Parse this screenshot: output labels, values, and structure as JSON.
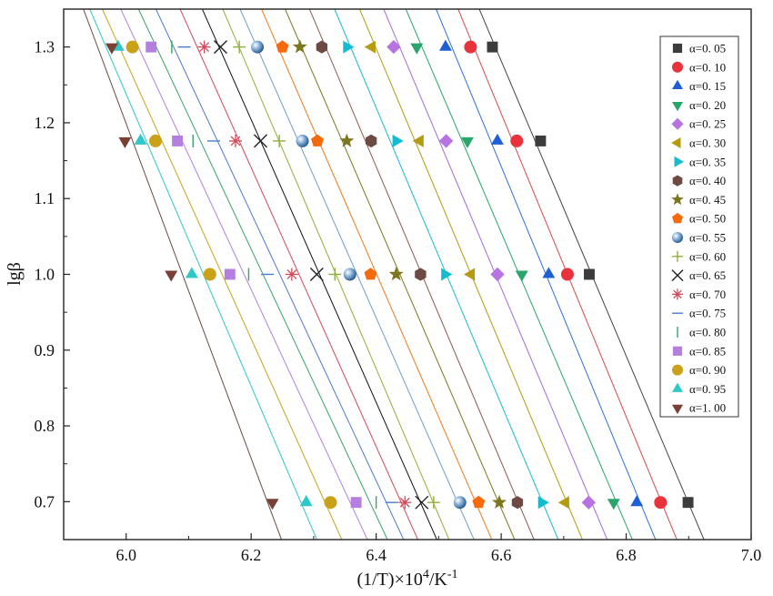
{
  "chart_data": {
    "type": "scatter",
    "title": "",
    "xlabel": "(1/T)×10",
    "xlabel_sup": "4",
    "xlabel_tail": "/K",
    "xlabel_sup2": "-1",
    "ylabel": "lgβ",
    "xlim": [
      5.9,
      7.0
    ],
    "ylim": [
      0.65,
      1.35
    ],
    "xticks": [
      "6.0",
      "6.2",
      "6.4",
      "6.6",
      "6.8",
      "7.0"
    ],
    "yticks": [
      "0.7",
      "0.8",
      "0.9",
      "1.0",
      "1.1",
      "1.2",
      "1.3"
    ],
    "y_levels": [
      1.3,
      1.176,
      1.0,
      0.699
    ],
    "legend_position": "right",
    "grid": false,
    "fit_lines": true,
    "series": [
      {
        "name": "α=0. 05",
        "marker": "square",
        "color": "#3c3c3c",
        "line_color": "#444444",
        "x": [
          6.586,
          6.663,
          6.741,
          6.899
        ]
      },
      {
        "name": "α=0. 10",
        "marker": "circle",
        "color": "#e8323c",
        "line_color": "#d84a4a",
        "x": [
          6.551,
          6.625,
          6.706,
          6.855
        ]
      },
      {
        "name": "α=0. 15",
        "marker": "triangle-up",
        "color": "#1f5fd6",
        "line_color": "#2f6fe0",
        "x": [
          6.511,
          6.594,
          6.676,
          6.817
        ]
      },
      {
        "name": "α=0. 20",
        "marker": "triangle-down",
        "color": "#2aa56b",
        "line_color": "#2aa56b",
        "x": [
          6.465,
          6.546,
          6.633,
          6.78
        ]
      },
      {
        "name": "α=0. 25",
        "marker": "diamond",
        "color": "#b774e0",
        "line_color": "#a76ad8",
        "x": [
          6.428,
          6.512,
          6.594,
          6.74
        ]
      },
      {
        "name": "α=0. 30",
        "marker": "triangle-left",
        "color": "#b59b0f",
        "line_color": "#b59b0f",
        "x": [
          6.393,
          6.47,
          6.552,
          6.703
        ]
      },
      {
        "name": "α=0. 35",
        "marker": "triangle-right",
        "color": "#15bcd0",
        "line_color": "#15bcd0",
        "x": [
          6.353,
          6.432,
          6.51,
          6.665
        ]
      },
      {
        "name": "α=0. 40",
        "marker": "hexagon",
        "color": "#6e4a44",
        "line_color": "#8a5a50",
        "x": [
          6.313,
          6.392,
          6.471,
          6.626
        ]
      },
      {
        "name": "α=0. 45",
        "marker": "star",
        "color": "#7d7620",
        "line_color": "#7d7620",
        "x": [
          6.278,
          6.353,
          6.432,
          6.597
        ]
      },
      {
        "name": "α=0. 50",
        "marker": "pentagon",
        "color": "#f46a0c",
        "line_color": "#f07a1a",
        "x": [
          6.25,
          6.306,
          6.391,
          6.564
        ]
      },
      {
        "name": "α=0. 55",
        "marker": "sphere",
        "color": "#6f9ec8",
        "line_color": "#6f9ec8",
        "x": [
          6.21,
          6.282,
          6.358,
          6.534
        ]
      },
      {
        "name": "α=0. 60",
        "marker": "plus",
        "color": "#8fb03a",
        "line_color": "#8fb03a",
        "x": [
          6.181,
          6.245,
          6.334,
          6.492
        ]
      },
      {
        "name": "α=0. 65",
        "marker": "cross",
        "color": "#222222",
        "line_color": "#111111",
        "x": [
          6.151,
          6.215,
          6.305,
          6.473
        ]
      },
      {
        "name": "α=0. 70",
        "marker": "asterisk",
        "color": "#d24a5a",
        "line_color": "#d24a5a",
        "x": [
          6.125,
          6.175,
          6.265,
          6.446
        ]
      },
      {
        "name": "α=0. 75",
        "marker": "hline",
        "color": "#4a7bd0",
        "line_color": "#4a7bd0",
        "x": [
          6.093,
          6.14,
          6.226,
          6.425
        ]
      },
      {
        "name": "α=0. 80",
        "marker": "vline",
        "color": "#3aa36a",
        "line_color": "#3aa36a",
        "x": [
          6.073,
          6.107,
          6.196,
          6.4
        ]
      },
      {
        "name": "α=0. 85",
        "marker": "square",
        "color": "#b57fe0",
        "line_color": "#b57fe0",
        "x": [
          6.04,
          6.082,
          6.166,
          6.368
        ]
      },
      {
        "name": "α=0. 90",
        "marker": "circle",
        "color": "#c9a21a",
        "line_color": "#c9a21a",
        "x": [
          6.01,
          6.047,
          6.134,
          6.327
        ]
      },
      {
        "name": "α=0. 95",
        "marker": "triangle-up",
        "color": "#2fc7c7",
        "line_color": "#2fc7c7",
        "x": [
          5.987,
          6.023,
          6.105,
          6.288
        ]
      },
      {
        "name": "α=1. 00",
        "marker": "triangle-down",
        "color": "#7a4035",
        "line_color": "#6e4a44",
        "x": [
          5.977,
          5.998,
          6.072,
          6.234
        ]
      }
    ]
  }
}
